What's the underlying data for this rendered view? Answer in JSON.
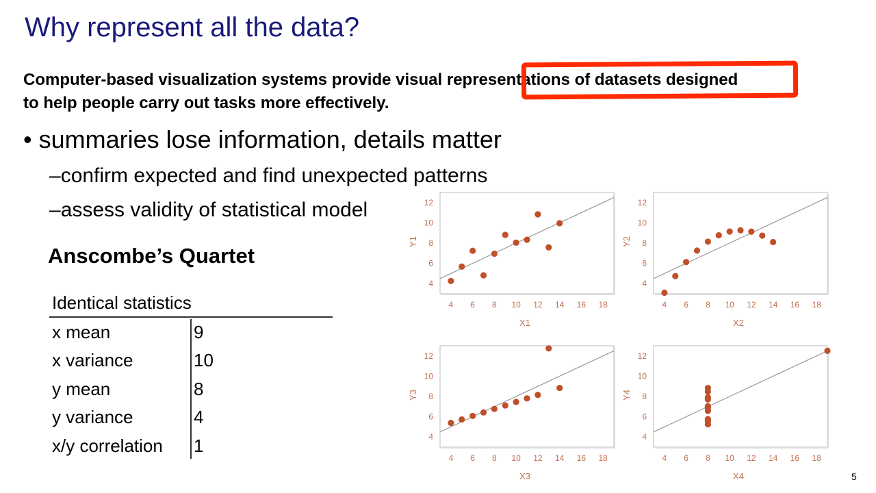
{
  "slide": {
    "title": "Why represent all the data?",
    "description_line1": "Computer-based visualization systems provide visual representations of datasets designed",
    "description_line2": "to help people carry out tasks more effectively.",
    "bullet1": "summaries lose information, details matter",
    "bullet_symbol": "•",
    "sub_bullet_dash": "–",
    "sub1": "confirm expected and find unexpected patterns",
    "sub2": "assess validity of statistical model",
    "quartet_title": "Anscombe’s Quartet",
    "page_number": "5",
    "highlight_color": "#ff2a00",
    "title_color": "#1a1a7a"
  },
  "stats": {
    "header": "Identical statistics",
    "rows": [
      {
        "label": "x mean",
        "value": "9"
      },
      {
        "label": "x variance",
        "value": "10"
      },
      {
        "label": "y mean",
        "value": "8"
      },
      {
        "label": "y variance",
        "value": "4"
      },
      {
        "label": "x/y correlation",
        "value": "1"
      }
    ]
  },
  "chart_data": [
    {
      "type": "scatter",
      "xlabel": "X1",
      "ylabel": "Y1",
      "xlim": [
        3,
        19
      ],
      "ylim": [
        3,
        13
      ],
      "xticks": [
        4,
        6,
        8,
        10,
        12,
        14,
        16,
        18
      ],
      "yticks": [
        4,
        6,
        8,
        10,
        12
      ],
      "points": [
        [
          4,
          4.26
        ],
        [
          5,
          5.68
        ],
        [
          6,
          7.24
        ],
        [
          7,
          4.82
        ],
        [
          8,
          6.95
        ],
        [
          9,
          8.81
        ],
        [
          10,
          8.04
        ],
        [
          11,
          8.33
        ],
        [
          12,
          10.84
        ],
        [
          13,
          7.58
        ],
        [
          14,
          9.96
        ]
      ],
      "fit": {
        "slope": 0.5,
        "intercept": 3
      },
      "point_color": "#c0502a",
      "line_color": "#999999"
    },
    {
      "type": "scatter",
      "xlabel": "X2",
      "ylabel": "Y2",
      "xlim": [
        3,
        19
      ],
      "ylim": [
        3,
        13
      ],
      "xticks": [
        4,
        6,
        8,
        10,
        12,
        14,
        16,
        18
      ],
      "yticks": [
        4,
        6,
        8,
        10,
        12
      ],
      "points": [
        [
          4,
          3.1
        ],
        [
          5,
          4.74
        ],
        [
          6,
          6.13
        ],
        [
          7,
          7.26
        ],
        [
          8,
          8.14
        ],
        [
          9,
          8.77
        ],
        [
          10,
          9.14
        ],
        [
          11,
          9.26
        ],
        [
          12,
          9.13
        ],
        [
          13,
          8.74
        ],
        [
          14,
          8.1
        ]
      ],
      "fit": {
        "slope": 0.5,
        "intercept": 3
      },
      "point_color": "#c0502a",
      "line_color": "#999999"
    },
    {
      "type": "scatter",
      "xlabel": "X3",
      "ylabel": "Y3",
      "xlim": [
        3,
        19
      ],
      "ylim": [
        3,
        13
      ],
      "xticks": [
        4,
        6,
        8,
        10,
        12,
        14,
        16,
        18
      ],
      "yticks": [
        4,
        6,
        8,
        10,
        12
      ],
      "points": [
        [
          4,
          5.39
        ],
        [
          5,
          5.73
        ],
        [
          6,
          6.08
        ],
        [
          7,
          6.42
        ],
        [
          8,
          6.77
        ],
        [
          9,
          7.11
        ],
        [
          10,
          7.46
        ],
        [
          11,
          7.81
        ],
        [
          12,
          8.15
        ],
        [
          13,
          12.74
        ],
        [
          14,
          8.84
        ]
      ],
      "fit": {
        "slope": 0.5,
        "intercept": 3
      },
      "point_color": "#c0502a",
      "line_color": "#999999"
    },
    {
      "type": "scatter",
      "xlabel": "X4",
      "ylabel": "Y4",
      "xlim": [
        3,
        19
      ],
      "ylim": [
        3,
        13
      ],
      "xticks": [
        4,
        6,
        8,
        10,
        12,
        14,
        16,
        18
      ],
      "yticks": [
        4,
        6,
        8,
        10,
        12
      ],
      "points": [
        [
          8,
          6.58
        ],
        [
          8,
          5.76
        ],
        [
          8,
          7.71
        ],
        [
          8,
          8.84
        ],
        [
          8,
          8.47
        ],
        [
          8,
          7.04
        ],
        [
          8,
          5.25
        ],
        [
          19,
          12.5
        ],
        [
          8,
          5.56
        ],
        [
          8,
          7.91
        ],
        [
          8,
          6.89
        ]
      ],
      "fit": {
        "slope": 0.5,
        "intercept": 3
      },
      "point_color": "#c0502a",
      "line_color": "#999999"
    }
  ]
}
